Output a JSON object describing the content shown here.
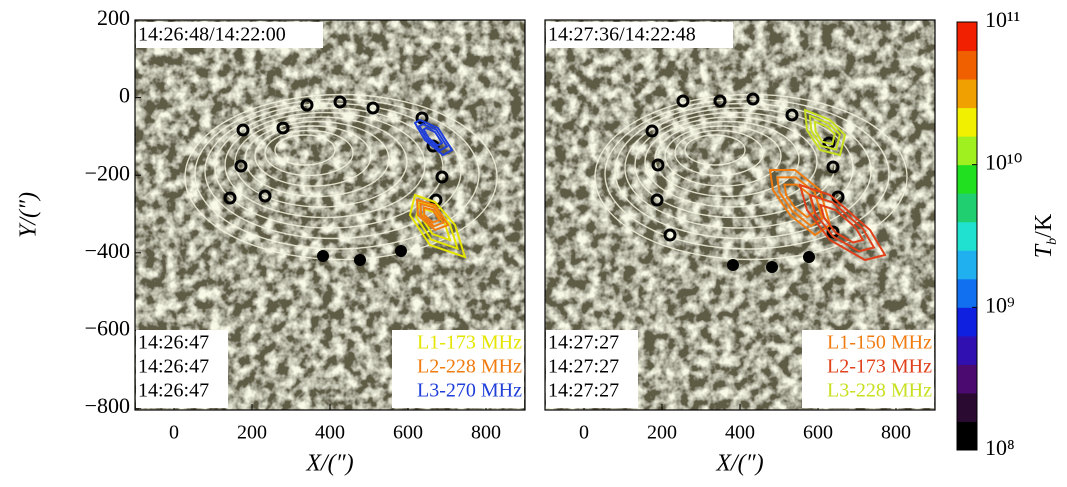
{
  "chart_data": [
    {
      "type": "image",
      "xlabel": "X/(″)",
      "ylabel": "Y/(″)",
      "xlim": [
        -100,
        900
      ],
      "ylim": [
        -805,
        200
      ],
      "xticks": [
        0,
        200,
        400,
        600,
        800
      ],
      "yticks": [
        200,
        0,
        {
          "value": -200,
          "label": "−200"
        },
        {
          "value": -400,
          "label": "−400"
        },
        {
          "value": -600,
          "label": "−600"
        },
        {
          "value": -800,
          "label": "−800"
        }
      ],
      "time_label": "14:26:48/14:22:00",
      "times": [
        "14:26:47",
        "14:26:47",
        "14:26:47"
      ],
      "series": [
        {
          "name": "L1-173 MHz",
          "color": "#e5e500"
        },
        {
          "name": "L2-228 MHz",
          "color": "#f07c10"
        },
        {
          "name": "L3-270 MHz",
          "color": "#1f3fd8"
        }
      ]
    },
    {
      "type": "image",
      "xlabel": "X/(″)",
      "xlim": [
        -100,
        900
      ],
      "ylim": [
        -805,
        200
      ],
      "xticks": [
        0,
        200,
        400,
        600,
        800
      ],
      "time_label": "14:27:36/14:22:48",
      "times": [
        "14:27:27",
        "14:27:27",
        "14:27:27"
      ],
      "series": [
        {
          "name": "L1-150 MHz",
          "color": "#f07c10"
        },
        {
          "name": "L2-173 MHz",
          "color": "#e0401a"
        },
        {
          "name": "L3-228 MHz",
          "color": "#c8e020"
        }
      ]
    },
    {
      "type": "colorbar",
      "ylabel": [
        "T",
        "b",
        "/K"
      ],
      "log": true,
      "ylim": [
        100000000,
        100000000000
      ],
      "yticks": [
        {
          "value": 100000000,
          "label": "10⁸"
        },
        {
          "value": 1000000000,
          "label": "10⁹"
        },
        {
          "value": 10000000000,
          "label": "10¹⁰"
        },
        {
          "value": 100000000000,
          "label": "10¹¹"
        }
      ],
      "colors": [
        "#000000",
        "#2a0a30",
        "#4a0a70",
        "#3010b0",
        "#1020e0",
        "#1070f0",
        "#20b0f0",
        "#20e0d0",
        "#20d070",
        "#20e020",
        "#a0f020",
        "#f0f000",
        "#f0a000",
        "#f06000",
        "#f02000"
      ]
    }
  ]
}
